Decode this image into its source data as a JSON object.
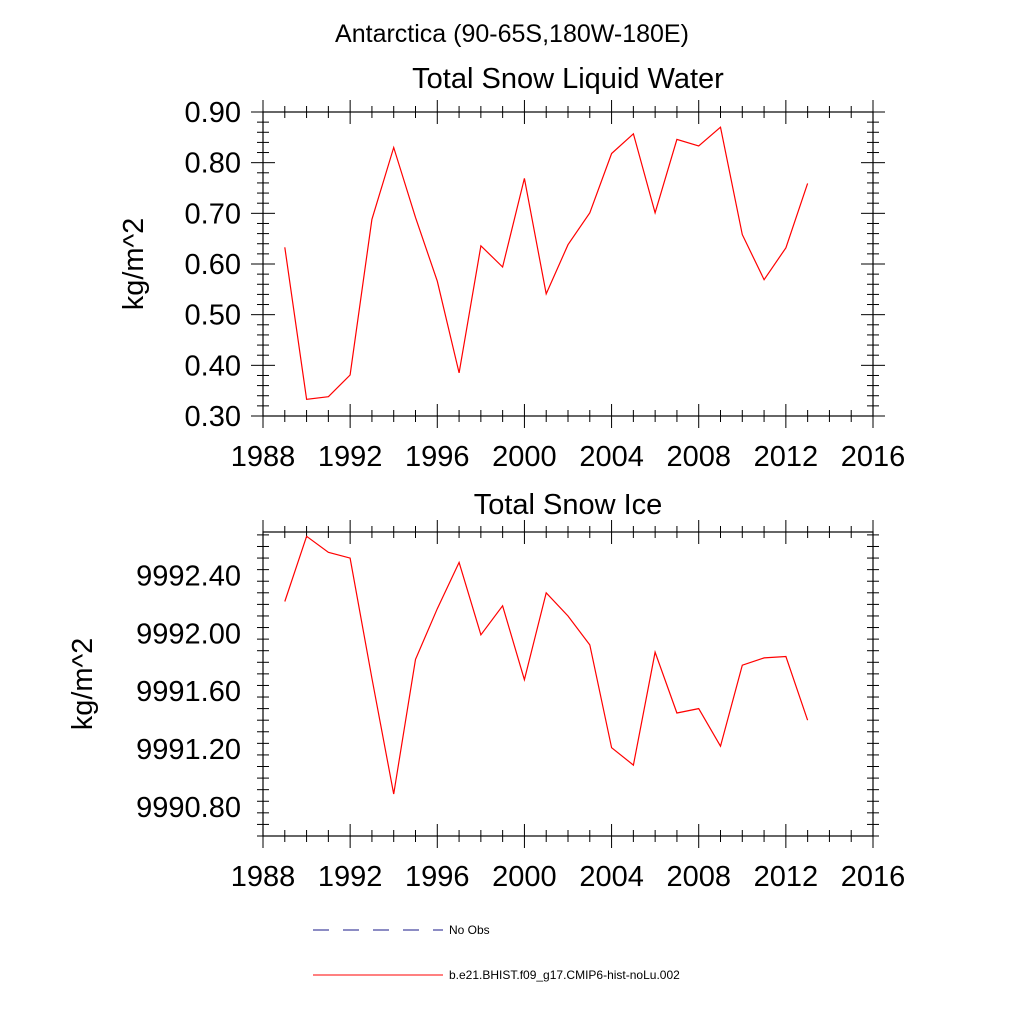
{
  "suptitle": "Antarctica (90-65S,180W-180E)",
  "legend": {
    "entries": [
      {
        "label": "No Obs",
        "color": "#1a1a8a",
        "style": "dashed"
      },
      {
        "label": "b.e21.BHIST.f09_g17.CMIP6-hist-noLu.002",
        "color": "#ff0000",
        "style": "solid"
      }
    ]
  },
  "chart_data": [
    {
      "type": "line",
      "title": "Total Snow Liquid Water",
      "xlabel": "",
      "ylabel": "kg/m^2",
      "xlim": [
        1988,
        2016
      ],
      "ylim": [
        0.3,
        0.9
      ],
      "xticks": [
        "1988",
        "1992",
        "1996",
        "2000",
        "2004",
        "2008",
        "2012",
        "2016"
      ],
      "yticks": [
        "0.30",
        "0.40",
        "0.50",
        "0.60",
        "0.70",
        "0.80",
        "0.90"
      ],
      "series": [
        {
          "name": "b.e21.BHIST.f09_g17.CMIP6-hist-noLu.002",
          "color": "#ff0000",
          "x": [
            1989,
            1990,
            1991,
            1992,
            1993,
            1994,
            1995,
            1996,
            1997,
            1998,
            1999,
            2000,
            2001,
            2002,
            2003,
            2004,
            2005,
            2006,
            2007,
            2008,
            2009,
            2010,
            2011,
            2012,
            2013
          ],
          "y": [
            0.633,
            0.333,
            0.338,
            0.381,
            0.688,
            0.83,
            0.692,
            0.566,
            0.385,
            0.636,
            0.594,
            0.769,
            0.541,
            0.638,
            0.701,
            0.818,
            0.857,
            0.701,
            0.846,
            0.833,
            0.87,
            0.658,
            0.569,
            0.632,
            0.759
          ]
        }
      ]
    },
    {
      "type": "line",
      "title": "Total Snow Ice",
      "xlabel": "",
      "ylabel": "kg/m^2",
      "xlim": [
        1988,
        2016
      ],
      "ylim": [
        9990.6,
        9992.7
      ],
      "xticks": [
        "1988",
        "1992",
        "1996",
        "2000",
        "2004",
        "2008",
        "2012",
        "2016"
      ],
      "yticks": [
        "9990.80",
        "9991.20",
        "9991.60",
        "9992.00",
        "9992.40"
      ],
      "series": [
        {
          "name": "b.e21.BHIST.f09_g17.CMIP6-hist-noLu.002",
          "color": "#ff0000",
          "x": [
            1989,
            1990,
            1991,
            1992,
            1993,
            1994,
            1995,
            1996,
            1997,
            1998,
            1999,
            2000,
            2001,
            2002,
            2003,
            2004,
            2005,
            2006,
            2007,
            2008,
            2009,
            2010,
            2011,
            2012,
            2013
          ],
          "y": [
            9992.22,
            9992.67,
            9992.56,
            9992.52,
            9991.69,
            9990.89,
            9991.82,
            9992.17,
            9992.49,
            9991.99,
            9992.19,
            9991.68,
            9992.28,
            9992.12,
            9991.92,
            9991.21,
            9991.09,
            9991.87,
            9991.45,
            9991.48,
            9991.22,
            9991.78,
            9991.83,
            9991.84,
            9991.4
          ]
        }
      ]
    }
  ]
}
